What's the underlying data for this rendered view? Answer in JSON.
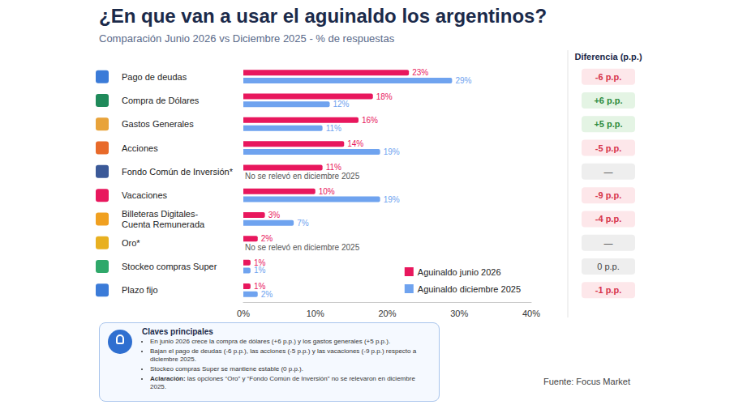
{
  "chart_data": {
    "type": "bar",
    "orientation": "horizontal",
    "title": "¿En que van a usar el aguinaldo los argentinos?",
    "subtitle": "Comparación Junio 2026 vs Diciembre 2025 - % de respuestas",
    "categories": [
      "Pago de deudas",
      "Compra de Dólares",
      "Gastos Generales",
      "Acciones",
      "Fondo Común de Inversión*",
      "Vacaciones",
      "Billeteras Digitales- Cuenta Remunerada",
      "Oro*",
      "Stockeo compras Super",
      "Plazo fijo"
    ],
    "series": [
      {
        "name": "Aguinaldo junio 2026",
        "color": "#e8175d",
        "values": [
          23,
          18,
          16,
          14,
          11,
          10,
          3,
          2,
          1,
          1
        ],
        "value_labels": [
          "23%",
          "18%",
          "16%",
          "14%",
          "11%",
          "10%",
          "3%",
          "2%",
          "1%",
          "1%"
        ]
      },
      {
        "name": "Aguinaldo diciembre 2025",
        "color": "#6fa3ef",
        "values": [
          29,
          12,
          11,
          19,
          null,
          19,
          7,
          null,
          1,
          2
        ],
        "value_labels": [
          "29%",
          "12%",
          "11%",
          "19%",
          null,
          "19%",
          "7%",
          null,
          "1%",
          "2%"
        ]
      }
    ],
    "missing_note": "No se relevó en diciembre 2025",
    "xlim": [
      0,
      40
    ],
    "xticks": [
      {
        "value": 0,
        "label": "0%"
      },
      {
        "value": 10,
        "label": "10%"
      },
      {
        "value": 20,
        "label": "20%"
      },
      {
        "value": 30,
        "label": "30%"
      },
      {
        "value": 40,
        "label": "40%"
      }
    ],
    "grid": false,
    "data_labels": true,
    "legend": "lower right",
    "difference": {
      "title": "Diferencia (p.p.)",
      "values": [
        -6,
        6,
        5,
        -5,
        null,
        -9,
        -4,
        null,
        0,
        -1
      ],
      "labels": [
        "-6 p.p.",
        "+6 p.p.",
        "+5 p.p.",
        "-5 p.p.",
        "—",
        "-9 p.p.",
        "-4 p.p.",
        "—",
        "0 p.p.",
        "-1 p.p."
      ]
    },
    "key_box": {
      "title": "Claves principales",
      "items": [
        "En junio 2026 crece la compra de dólares (+6 p.p.) y los gastos generales (+5 p.p.).",
        "Bajan el pago de deudas (-6 p.p.), las acciones (-5 p.p.) y las vacaciones (-9 p.p.) respecto a diciembre 2025.",
        "Stockeo compras Super se mantiene estable (0 p.p.)."
      ],
      "clarification": {
        "label": "Aclaración:",
        "text": "las opciones “Oro” y “Fondo Común de Inversión” no se relevaron en diciembre 2025."
      }
    },
    "source": "Fuente: Focus Market"
  }
}
